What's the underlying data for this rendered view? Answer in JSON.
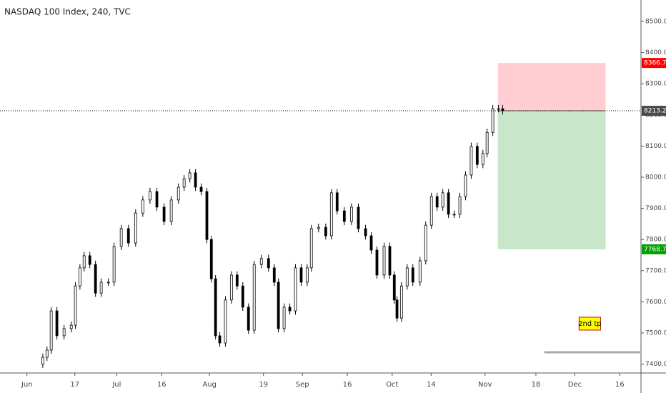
{
  "chart_data": {
    "type": "candlestick",
    "title": "NASDAQ 100 Index, 240, TVC",
    "xlim": [
      -9,
      205.1
    ],
    "ylim": [
      7371.6,
      8568.8
    ],
    "xticks": [
      {
        "value": 0,
        "label": "Jun"
      },
      {
        "value": 16,
        "label": "17"
      },
      {
        "value": 30,
        "label": "Jul"
      },
      {
        "value": 45,
        "label": "16"
      },
      {
        "value": 61,
        "label": "Aug"
      },
      {
        "value": 79,
        "label": "19"
      },
      {
        "value": 92,
        "label": "Sep"
      },
      {
        "value": 107,
        "label": "16"
      },
      {
        "value": 122,
        "label": "Oct"
      },
      {
        "value": 135,
        "label": "14"
      },
      {
        "value": 153,
        "label": "Nov"
      },
      {
        "value": 170,
        "label": "18"
      },
      {
        "value": 183,
        "label": "Dec"
      },
      {
        "value": 198,
        "label": "16"
      }
    ],
    "yticks": [
      {
        "value": 7400,
        "label": "7400.0"
      },
      {
        "value": 7500,
        "label": "7500.0"
      },
      {
        "value": 7600,
        "label": "7600.0"
      },
      {
        "value": 7700,
        "label": "7700.0"
      },
      {
        "value": 7800,
        "label": "7800.0"
      },
      {
        "value": 7900,
        "label": "7900.0"
      },
      {
        "value": 8000,
        "label": "8000.0"
      },
      {
        "value": 8100,
        "label": "8100.0"
      },
      {
        "value": 8200,
        "label": "8200.0"
      },
      {
        "value": 8300,
        "label": "8300.0"
      },
      {
        "value": 8400,
        "label": "8400.0"
      },
      {
        "value": 8500,
        "label": "8500.0"
      }
    ],
    "up_color": "#ffffff",
    "down_color": "#000000",
    "wick_color": "#000000",
    "x": [
      5.3,
      6.7,
      8.1,
      10.0,
      12.4,
      14.8,
      16.2,
      17.7,
      19.1,
      21.0,
      22.9,
      24.8,
      27.2,
      29.1,
      31.5,
      33.9,
      36.3,
      38.7,
      41.1,
      43.4,
      45.8,
      48.2,
      50.6,
      52.5,
      54.4,
      56.3,
      58.2,
      60.1,
      61.6,
      63.0,
      64.4,
      66.3,
      68.3,
      70.2,
      72.1,
      74.0,
      75.9,
      78.3,
      80.7,
      82.6,
      84.0,
      85.9,
      87.8,
      89.7,
      91.6,
      93.6,
      95.0,
      97.4,
      99.8,
      101.7,
      103.6,
      106.0,
      108.4,
      110.7,
      113.1,
      115.0,
      116.9,
      119.3,
      121.2,
      122.7,
      123.6,
      125.1,
      127.0,
      128.9,
      131.3,
      133.2,
      135.1,
      137.0,
      138.9,
      140.8,
      142.7,
      144.6,
      146.5,
      148.4,
      150.4,
      152.3,
      153.7,
      155.6,
      157.5,
      158.9
    ],
    "open": [
      7400,
      7422,
      7445,
      7571,
      7491,
      7514,
      7525,
      7651,
      7709,
      7748,
      7720,
      7628,
      7663,
      7663,
      7778,
      7835,
      7789,
      7885,
      7927,
      7954,
      7904,
      7858,
      7927,
      7968,
      7995,
      8014,
      7968,
      7954,
      7800,
      7674,
      7491,
      7468,
      7606,
      7686,
      7651,
      7583,
      7509,
      7720,
      7739,
      7709,
      7663,
      7514,
      7583,
      7571,
      7709,
      7663,
      7709,
      7835,
      7839,
      7812,
      7950,
      7892,
      7858,
      7904,
      7835,
      7812,
      7766,
      7686,
      7778,
      7686,
      7606,
      7548,
      7651,
      7709,
      7663,
      7732,
      7846,
      7938,
      7904,
      7950,
      7881,
      7881,
      7938,
      8007,
      8099,
      8041,
      8076,
      8144,
      8220,
      8220
    ],
    "high": [
      7434,
      7457,
      7583,
      7583,
      7526,
      7537,
      7663,
      7721,
      7760,
      7760,
      7732,
      7675,
      7675,
      7790,
      7847,
      7847,
      7897,
      7939,
      7966,
      7966,
      7916,
      7939,
      7980,
      8007,
      8026,
      8026,
      7980,
      7966,
      7812,
      7686,
      7503,
      7618,
      7698,
      7698,
      7663,
      7595,
      7732,
      7751,
      7751,
      7721,
      7675,
      7595,
      7595,
      7721,
      7721,
      7721,
      7847,
      7851,
      7851,
      7962,
      7962,
      7904,
      7916,
      7916,
      7847,
      7824,
      7778,
      7790,
      7790,
      7698,
      7618,
      7663,
      7721,
      7721,
      7744,
      7858,
      7950,
      7950,
      7962,
      7962,
      7893,
      7950,
      8019,
      8111,
      8111,
      8088,
      8156,
      8232,
      8232,
      8232
    ],
    "low": [
      7388,
      7410,
      7433,
      7479,
      7479,
      7502,
      7513,
      7639,
      7697,
      7708,
      7616,
      7616,
      7651,
      7651,
      7766,
      7777,
      7777,
      7873,
      7915,
      7892,
      7846,
      7846,
      7915,
      7956,
      7983,
      7956,
      7942,
      7788,
      7662,
      7479,
      7456,
      7456,
      7594,
      7639,
      7571,
      7497,
      7497,
      7708,
      7697,
      7651,
      7502,
      7502,
      7559,
      7559,
      7651,
      7651,
      7697,
      7823,
      7800,
      7800,
      7880,
      7846,
      7846,
      7823,
      7800,
      7754,
      7674,
      7674,
      7674,
      7594,
      7536,
      7536,
      7639,
      7651,
      7651,
      7720,
      7834,
      7892,
      7892,
      7869,
      7869,
      7869,
      7926,
      7995,
      8029,
      8029,
      8064,
      8132,
      8208,
      8201.2
    ],
    "close": [
      7422,
      7445,
      7571,
      7491,
      7514,
      7525,
      7651,
      7709,
      7748,
      7720,
      7628,
      7663,
      7663,
      7778,
      7835,
      7789,
      7885,
      7927,
      7954,
      7904,
      7858,
      7927,
      7968,
      7995,
      8014,
      7968,
      7954,
      7800,
      7674,
      7491,
      7468,
      7606,
      7686,
      7651,
      7583,
      7509,
      7720,
      7739,
      7709,
      7663,
      7514,
      7583,
      7571,
      7709,
      7663,
      7709,
      7835,
      7839,
      7812,
      7950,
      7892,
      7858,
      7904,
      7835,
      7812,
      7766,
      7686,
      7778,
      7686,
      7606,
      7548,
      7651,
      7709,
      7663,
      7732,
      7846,
      7938,
      7904,
      7950,
      7881,
      7881,
      7938,
      8007,
      8099,
      8041,
      8076,
      8144,
      8220,
      8220,
      8213.2
    ],
    "position": {
      "entry": 8213.2,
      "stop": 8366.7,
      "target": 7768.7,
      "x": [
        157.3,
        193.3
      ],
      "stop_color": "#ffcdd2",
      "target_color": "#c8e6c9",
      "stop_label_color": "#ff0000",
      "target_label_color": "#00a000",
      "price_label_color": "#4a4a4a"
    },
    "annotation": {
      "text": "2nd tp",
      "x": 188,
      "y": 7530,
      "color": "#ffff00"
    },
    "ray": {
      "y": 7438,
      "x": 172.8,
      "color": "#aaaaaa"
    }
  }
}
